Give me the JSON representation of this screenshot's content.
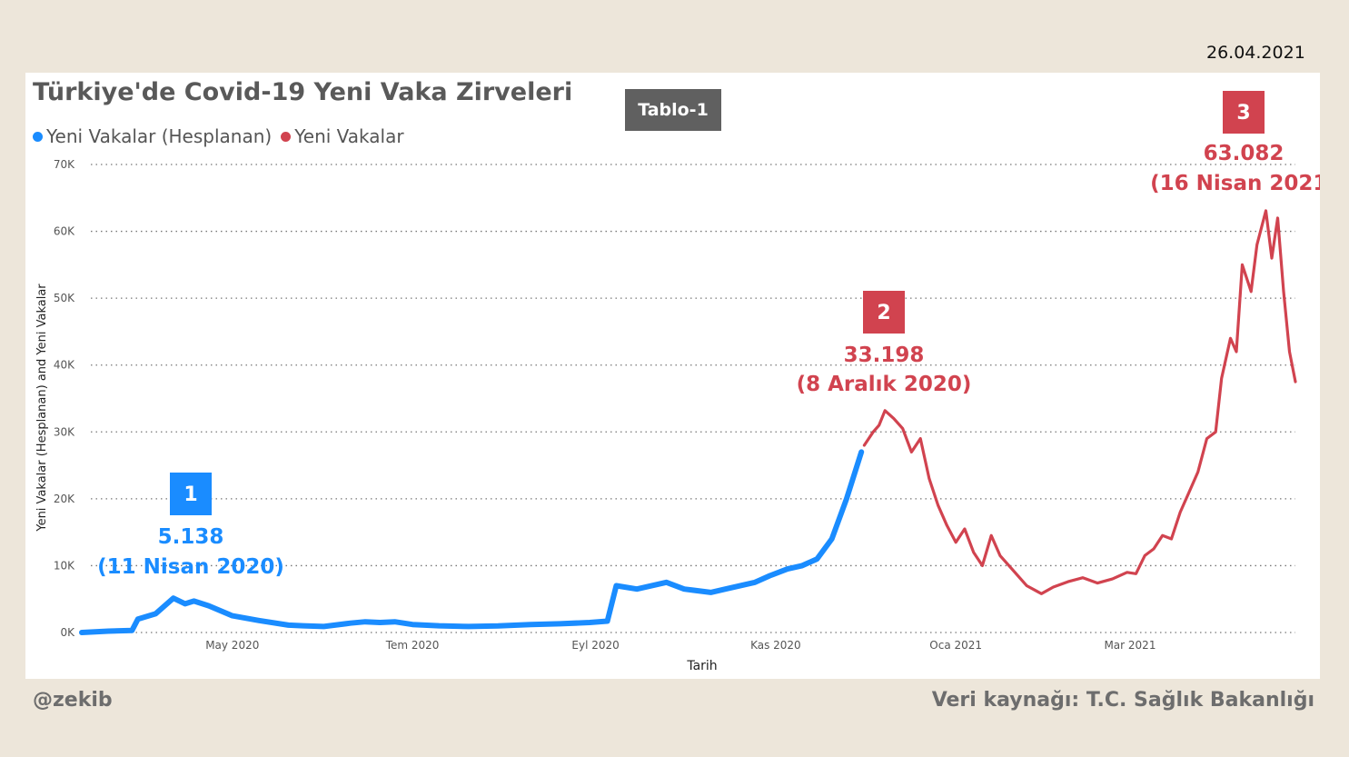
{
  "report_date": "26.04.2021",
  "footer": {
    "author": "@zekib",
    "source": "Veri kaynağı: T.C. Sağlık Bakanlığı"
  },
  "tablo_label": "Tablo-1",
  "colors": {
    "computed": "#1a8cff",
    "actual": "#d1434f",
    "annotation_box_blue": "#1a8cff",
    "annotation_box_red": "#d1434f"
  },
  "chart_data": {
    "type": "line",
    "title": "Türkiye'de Covid-19 Yeni Vaka Zirveleri",
    "xlabel": "Tarih",
    "ylabel": "Yeni Vakalar (Hesplanan) and Yeni Vakalar",
    "ylim": [
      0,
      70000
    ],
    "y_ticks": [
      "0K",
      "10K",
      "20K",
      "30K",
      "40K",
      "50K",
      "60K",
      "70K"
    ],
    "x_range": [
      "2020-03-11",
      "2021-04-26"
    ],
    "x_ticks": [
      {
        "date": "2020-05-01",
        "label": "May 2020"
      },
      {
        "date": "2020-07-01",
        "label": "Tem 2020"
      },
      {
        "date": "2020-09-01",
        "label": "Eyl 2020"
      },
      {
        "date": "2020-11-01",
        "label": "Kas 2020"
      },
      {
        "date": "2021-01-01",
        "label": "Oca 2021"
      },
      {
        "date": "2021-03-01",
        "label": "Mar 2021"
      }
    ],
    "grid": true,
    "legend_position": "top-left",
    "series": [
      {
        "name": "Yeni Vakalar (Hesplanan)",
        "color": "#1a8cff",
        "points": [
          [
            "2020-03-11",
            0
          ],
          [
            "2020-03-20",
            200
          ],
          [
            "2020-03-28",
            300
          ],
          [
            "2020-03-30",
            2000
          ],
          [
            "2020-04-05",
            2800
          ],
          [
            "2020-04-11",
            5138
          ],
          [
            "2020-04-15",
            4300
          ],
          [
            "2020-04-18",
            4700
          ],
          [
            "2020-04-23",
            4000
          ],
          [
            "2020-05-01",
            2500
          ],
          [
            "2020-05-10",
            1800
          ],
          [
            "2020-05-20",
            1100
          ],
          [
            "2020-05-25",
            1000
          ],
          [
            "2020-06-01",
            900
          ],
          [
            "2020-06-10",
            1400
          ],
          [
            "2020-06-15",
            1600
          ],
          [
            "2020-06-20",
            1500
          ],
          [
            "2020-06-25",
            1600
          ],
          [
            "2020-07-01",
            1200
          ],
          [
            "2020-07-10",
            1000
          ],
          [
            "2020-07-20",
            900
          ],
          [
            "2020-07-30",
            980
          ],
          [
            "2020-08-10",
            1200
          ],
          [
            "2020-08-20",
            1300
          ],
          [
            "2020-08-30",
            1500
          ],
          [
            "2020-09-05",
            1700
          ],
          [
            "2020-09-08",
            7000
          ],
          [
            "2020-09-15",
            6500
          ],
          [
            "2020-09-25",
            7500
          ],
          [
            "2020-10-01",
            6500
          ],
          [
            "2020-10-10",
            6000
          ],
          [
            "2020-10-15",
            6500
          ],
          [
            "2020-10-25",
            7500
          ],
          [
            "2020-10-30",
            8500
          ],
          [
            "2020-11-05",
            9500
          ],
          [
            "2020-11-10",
            10000
          ],
          [
            "2020-11-15",
            11000
          ],
          [
            "2020-11-20",
            14000
          ],
          [
            "2020-11-25",
            20000
          ],
          [
            "2020-11-30",
            27000
          ]
        ]
      },
      {
        "name": "Yeni Vakalar",
        "color": "#d1434f",
        "points": [
          [
            "2020-12-01",
            28000
          ],
          [
            "2020-12-04",
            30000
          ],
          [
            "2020-12-06",
            31000
          ],
          [
            "2020-12-08",
            33198
          ],
          [
            "2020-12-11",
            32000
          ],
          [
            "2020-12-14",
            30500
          ],
          [
            "2020-12-17",
            27000
          ],
          [
            "2020-12-20",
            29000
          ],
          [
            "2020-12-23",
            23000
          ],
          [
            "2020-12-26",
            19000
          ],
          [
            "2020-12-29",
            16000
          ],
          [
            "2021-01-01",
            13500
          ],
          [
            "2021-01-04",
            15500
          ],
          [
            "2021-01-07",
            12000
          ],
          [
            "2021-01-10",
            10000
          ],
          [
            "2021-01-13",
            14500
          ],
          [
            "2021-01-16",
            11500
          ],
          [
            "2021-01-20",
            9500
          ],
          [
            "2021-01-25",
            7000
          ],
          [
            "2021-01-30",
            5800
          ],
          [
            "2021-02-03",
            6800
          ],
          [
            "2021-02-08",
            7600
          ],
          [
            "2021-02-13",
            8200
          ],
          [
            "2021-02-18",
            7400
          ],
          [
            "2021-02-23",
            8000
          ],
          [
            "2021-02-28",
            9000
          ],
          [
            "2021-03-03",
            8800
          ],
          [
            "2021-03-06",
            11500
          ],
          [
            "2021-03-09",
            12500
          ],
          [
            "2021-03-12",
            14500
          ],
          [
            "2021-03-15",
            14000
          ],
          [
            "2021-03-18",
            18000
          ],
          [
            "2021-03-21",
            21000
          ],
          [
            "2021-03-24",
            24000
          ],
          [
            "2021-03-27",
            29000
          ],
          [
            "2021-03-30",
            30000
          ],
          [
            "2021-04-01",
            38000
          ],
          [
            "2021-04-04",
            44000
          ],
          [
            "2021-04-06",
            42000
          ],
          [
            "2021-04-08",
            55000
          ],
          [
            "2021-04-11",
            51000
          ],
          [
            "2021-04-13",
            58000
          ],
          [
            "2021-04-16",
            63082
          ],
          [
            "2021-04-18",
            56000
          ],
          [
            "2021-04-20",
            62000
          ],
          [
            "2021-04-22",
            51000
          ],
          [
            "2021-04-24",
            42000
          ],
          [
            "2021-04-26",
            37500
          ]
        ]
      }
    ],
    "annotations": [
      {
        "number": "1",
        "value": "5.138",
        "date_label": "(11 Nisan 2020)",
        "color": "#1a8cff"
      },
      {
        "number": "2",
        "value": "33.198",
        "date_label": "(8 Aralık 2020)",
        "color": "#d1434f"
      },
      {
        "number": "3",
        "value": "63.082",
        "date_label": "(16 Nisan 2021)",
        "color": "#d1434f"
      }
    ]
  }
}
